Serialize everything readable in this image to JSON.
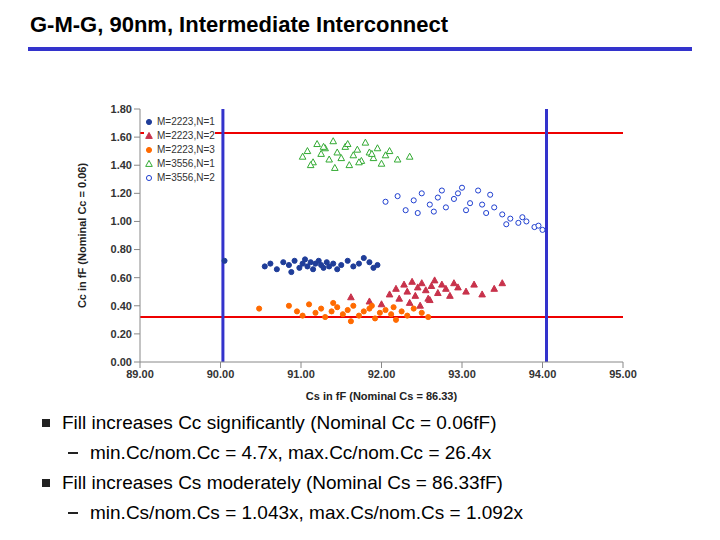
{
  "chart_data": {
    "type": "scatter",
    "title": "G-M-G, 90nm, Intermediate Interconnect",
    "x_label": "Cs in fF (Nominal Cs = 86.33)",
    "y_label": "Cc in fF (Nominal Cc = 0.06)",
    "xlim": [
      89,
      95
    ],
    "xticks": [
      {
        "value": 89,
        "label": "89.00"
      },
      {
        "value": 90,
        "label": "90.00"
      },
      {
        "value": 91,
        "label": "91.00"
      },
      {
        "value": 92,
        "label": "92.00"
      },
      {
        "value": 93,
        "label": "93.00"
      },
      {
        "value": 94,
        "label": "94.00"
      },
      {
        "value": 95,
        "label": "95.00"
      }
    ],
    "ylim": [
      0,
      1.8
    ],
    "yticks": [
      {
        "value": 0,
        "label": "0.00"
      },
      {
        "value": 0.2,
        "label": "0.20"
      },
      {
        "value": 0.4,
        "label": "0.40"
      },
      {
        "value": 0.6,
        "label": "0.60"
      },
      {
        "value": 0.8,
        "label": "0.80"
      },
      {
        "value": 1,
        "label": "1.00"
      },
      {
        "value": 1.2,
        "label": "1.20"
      },
      {
        "value": 1.4,
        "label": "1.40"
      },
      {
        "value": 1.6,
        "label": "1.60"
      },
      {
        "value": 1.8,
        "label": "1.80"
      }
    ],
    "grid": false,
    "legend": "top-left",
    "series": [
      {
        "name": "M=2223,N=1",
        "color": "#1f3d99",
        "marker": "circle",
        "x": [
          90.05,
          90.55,
          90.62,
          90.7,
          90.78,
          90.85,
          90.92,
          90.98,
          91.02,
          91.05,
          91.08,
          91.12,
          91.15,
          91.18,
          91.22,
          91.25,
          91.28,
          91.32,
          91.35,
          91.4,
          91.45,
          91.5,
          91.58,
          91.65,
          91.72,
          91.78,
          91.85,
          91.9,
          91.95,
          90.88
        ],
        "y": [
          0.72,
          0.68,
          0.7,
          0.66,
          0.71,
          0.69,
          0.72,
          0.67,
          0.7,
          0.73,
          0.68,
          0.71,
          0.66,
          0.7,
          0.72,
          0.69,
          0.67,
          0.71,
          0.68,
          0.7,
          0.66,
          0.69,
          0.72,
          0.68,
          0.7,
          0.74,
          0.71,
          0.67,
          0.69,
          0.64
        ]
      },
      {
        "name": "M=2223,N=2",
        "color": "#c8324b",
        "marker": "triangle",
        "x": [
          91.62,
          91.85,
          92.0,
          92.1,
          92.18,
          92.22,
          92.28,
          92.32,
          92.38,
          92.42,
          92.45,
          92.5,
          92.55,
          92.58,
          92.62,
          92.66,
          92.7,
          92.75,
          92.8,
          92.85,
          92.9,
          92.95,
          93.05,
          93.15,
          93.25,
          93.4,
          93.5,
          92.35,
          92.6,
          92.48
        ],
        "y": [
          0.46,
          0.43,
          0.41,
          0.48,
          0.52,
          0.45,
          0.55,
          0.5,
          0.57,
          0.47,
          0.53,
          0.56,
          0.51,
          0.45,
          0.54,
          0.58,
          0.49,
          0.55,
          0.52,
          0.47,
          0.56,
          0.53,
          0.5,
          0.55,
          0.48,
          0.52,
          0.56,
          0.42,
          0.44,
          0.4
        ]
      },
      {
        "name": "M=2223,N=3",
        "color": "#ff6a00",
        "marker": "circle",
        "x": [
          90.48,
          90.85,
          90.95,
          91.02,
          91.1,
          91.18,
          91.25,
          91.3,
          91.38,
          91.45,
          91.52,
          91.58,
          91.65,
          91.72,
          91.78,
          91.85,
          91.92,
          91.98,
          92.05,
          92.12,
          92.18,
          92.25,
          92.32,
          92.4,
          92.5,
          92.58,
          91.4,
          91.62,
          91.88,
          92.15
        ],
        "y": [
          0.38,
          0.4,
          0.36,
          0.33,
          0.41,
          0.35,
          0.38,
          0.32,
          0.36,
          0.39,
          0.34,
          0.37,
          0.4,
          0.33,
          0.36,
          0.38,
          0.31,
          0.35,
          0.37,
          0.34,
          0.3,
          0.36,
          0.33,
          0.38,
          0.35,
          0.32,
          0.42,
          0.29,
          0.4,
          0.39
        ]
      },
      {
        "name": "M=3556,N=1",
        "color": "#33aa33",
        "marker": "open_triangle",
        "x": [
          91.02,
          91.08,
          91.15,
          91.2,
          91.25,
          91.3,
          91.35,
          91.4,
          91.45,
          91.5,
          91.55,
          91.6,
          91.65,
          91.7,
          91.75,
          91.8,
          91.85,
          91.9,
          91.95,
          92.0,
          92.05,
          92.1,
          92.2,
          92.35,
          91.42,
          91.58,
          91.72,
          91.88,
          91.28,
          91.12
        ],
        "y": [
          1.46,
          1.5,
          1.42,
          1.55,
          1.48,
          1.52,
          1.44,
          1.57,
          1.49,
          1.45,
          1.53,
          1.4,
          1.47,
          1.51,
          1.43,
          1.56,
          1.49,
          1.45,
          1.52,
          1.41,
          1.47,
          1.5,
          1.44,
          1.46,
          1.38,
          1.55,
          1.42,
          1.48,
          1.53,
          1.4
        ]
      },
      {
        "name": "M=3556,N=2",
        "color": "#2040d0",
        "marker": "open_circle",
        "x": [
          92.05,
          92.2,
          92.3,
          92.4,
          92.5,
          92.6,
          92.7,
          92.8,
          92.9,
          93.0,
          93.1,
          93.2,
          93.3,
          93.4,
          93.5,
          93.6,
          93.7,
          93.8,
          93.9,
          94.0,
          92.45,
          92.75,
          93.05,
          93.35,
          93.55,
          93.75,
          93.95,
          92.65,
          92.95,
          93.25
        ],
        "y": [
          1.14,
          1.18,
          1.08,
          1.15,
          1.2,
          1.12,
          1.17,
          1.1,
          1.16,
          1.24,
          1.13,
          1.22,
          1.06,
          1.1,
          1.05,
          1.02,
          0.99,
          1.0,
          0.96,
          0.94,
          1.06,
          1.22,
          1.08,
          1.19,
          0.98,
          1.03,
          0.97,
          1.07,
          1.2,
          1.12
        ]
      }
    ],
    "reference_lines": [
      {
        "axis": "y",
        "value": 1.63,
        "color": "#ee0000"
      },
      {
        "axis": "y",
        "value": 0.32,
        "color": "#ee0000"
      },
      {
        "axis": "x",
        "value": 90.03,
        "color": "#3333cc"
      },
      {
        "axis": "x",
        "value": 94.05,
        "color": "#3333cc"
      }
    ],
    "annotations": [
      {
        "text": "Fill increases Cc significantly (Nominal Cc = 0.06fF)",
        "detail": "min.Cc/nom.Cc = 4.7x, max.Cc/nom.Cc = 26.4x"
      },
      {
        "text": "Fill increases Cs moderately (Nominal Cs = 86.33fF)",
        "detail": "min.Cs/nom.Cs = 1.043x, max.Cs/nom.Cs = 1.092x"
      }
    ]
  }
}
